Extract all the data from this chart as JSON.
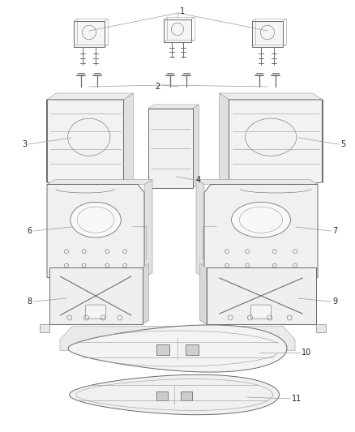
{
  "bg_color": "#ffffff",
  "line_color": "#6a6a6a",
  "light_line": "#999999",
  "label_color": "#222222",
  "lw": 0.7,
  "thin_lw": 0.4,
  "anno_lw": 0.5,
  "anno_color": "#999999",
  "fig_w": 4.38,
  "fig_h": 5.33,
  "dpi": 100
}
